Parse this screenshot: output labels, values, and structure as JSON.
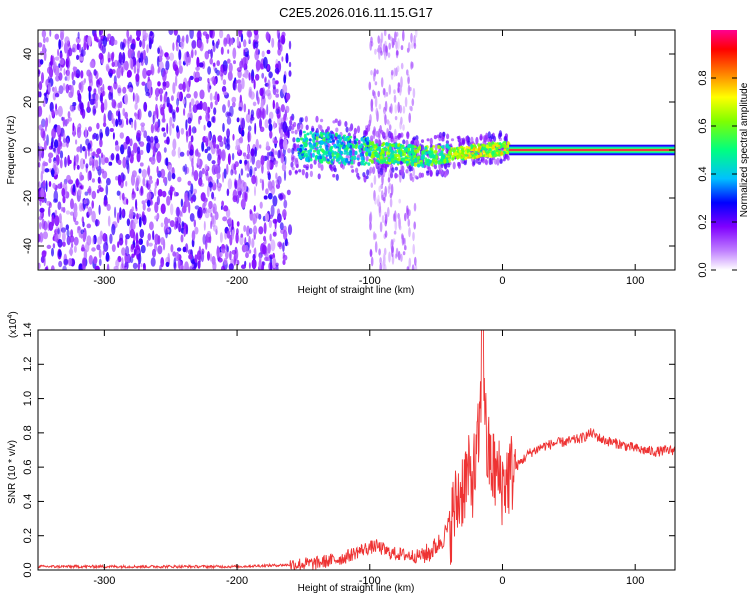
{
  "title": "C2E5.2026.016.11.15.G17",
  "chart_data": [
    {
      "type": "heatmap",
      "title": "C2E5.2026.016.11.15.G17",
      "xlabel": "Height of straight line (km)",
      "ylabel": "Frequency (Hz)",
      "xlim": [
        -350,
        130
      ],
      "ylim": [
        -50,
        50
      ],
      "xticks": [
        -300,
        -200,
        -100,
        0,
        100
      ],
      "yticks": [
        -40,
        -20,
        0,
        20,
        40
      ],
      "colorbar": {
        "label": "Normalized spectral amplitude",
        "range": [
          0.0,
          1.0
        ],
        "ticks": [
          0.0,
          0.2,
          0.4,
          0.6,
          0.8
        ],
        "colormap": [
          "#ffffff",
          "#8000ff",
          "#0000ff",
          "#00d0ff",
          "#00ff40",
          "#ffff00",
          "#ff8000",
          "#ff0000",
          "#ff00a0"
        ]
      },
      "regions": [
        {
          "x_range": [
            -350,
            -160
          ],
          "freq_spread": 50,
          "level": 0.15,
          "description": "broadband noise"
        },
        {
          "x_range": [
            -160,
            -60
          ],
          "freq_spread": 8,
          "level": 0.35,
          "description": "signal band"
        },
        {
          "x_range": [
            -60,
            5
          ],
          "freq_spread": 4,
          "level": 0.55,
          "description": "converging signal"
        },
        {
          "x_range": [
            5,
            130
          ],
          "freq_spread": 1,
          "level": 0.95,
          "description": "clean carrier"
        }
      ]
    },
    {
      "type": "line",
      "xlabel": "Height of straight line (km)",
      "ylabel": "SNR (10 * v/v)",
      "scale_label": "(x10",
      "scale_exponent": "4",
      "xlim": [
        -350,
        130
      ],
      "ylim": [
        0.0,
        1.4
      ],
      "xticks": [
        -300,
        -200,
        -100,
        0,
        100
      ],
      "yticks": [
        0.0,
        0.2,
        0.4,
        0.6,
        0.8,
        1.0,
        1.2,
        1.4
      ],
      "ytick_labels": [
        "0.0",
        "0.2",
        "0.4",
        "0.6",
        "0.8",
        "1.0",
        "1.2",
        "1.4"
      ],
      "color": "#ee3333",
      "series": [
        {
          "name": "SNR",
          "x": [
            -350,
            -320,
            -290,
            -260,
            -230,
            -200,
            -180,
            -160,
            -140,
            -120,
            -105,
            -95,
            -85,
            -75,
            -65,
            -55,
            -45,
            -38,
            -32,
            -27,
            -24,
            -20,
            -17,
            -15,
            -12,
            -8,
            -4,
            0,
            5,
            10,
            20,
            30,
            40,
            50,
            60,
            67,
            75,
            85,
            95,
            105,
            115,
            130
          ],
          "y": [
            0.02,
            0.02,
            0.02,
            0.02,
            0.02,
            0.02,
            0.025,
            0.03,
            0.04,
            0.07,
            0.12,
            0.14,
            0.1,
            0.09,
            0.08,
            0.1,
            0.18,
            0.3,
            0.45,
            0.55,
            0.52,
            0.6,
            0.85,
            1.4,
            0.7,
            0.6,
            0.55,
            0.5,
            0.55,
            0.6,
            0.68,
            0.72,
            0.74,
            0.75,
            0.77,
            0.8,
            0.76,
            0.74,
            0.72,
            0.7,
            0.69,
            0.7
          ]
        }
      ]
    }
  ]
}
